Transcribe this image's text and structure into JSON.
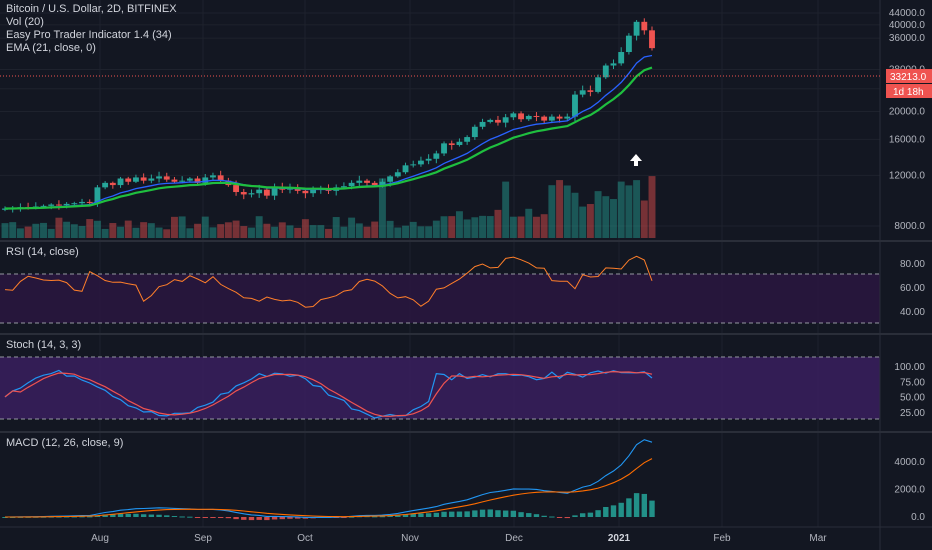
{
  "header": {
    "title": "Bitcoin / U.S. Dollar, 2D, BITFINEX",
    "vol": "Vol (20)",
    "indicator": "Easy Pro Trader Indicator 1.4 (34)",
    "ema": "EMA (21, close, 0)"
  },
  "price_tag": {
    "value": "33213.0",
    "countdown": "1d 18h"
  },
  "rsi_title": "RSI (14, close)",
  "stoch_title": "Stoch (14, 3, 3)",
  "macd_title": "MACD (12, 26, close, 9)",
  "colors": {
    "background": "#131722",
    "up": "#26a69a",
    "down": "#ef5350",
    "ema_blue": "#2962ff",
    "ema_green": "#1fbf3f",
    "rsi_line": "#ff7f2a",
    "band_fill": "#3a1e5e",
    "stoch_k": "#2196f3",
    "stoch_d": "#ef5350",
    "macd_line": "#2196f3",
    "signal_line": "#ff6d00"
  },
  "chart_data": [
    {
      "type": "candlestick",
      "title": "Bitcoin / U.S. Dollar, 2D, BITFINEX",
      "x_ticks": [
        "Aug",
        "Sep",
        "Oct",
        "Nov",
        "Dec",
        "2021",
        "Feb",
        "Mar"
      ],
      "y_ticks": [
        "44000.0",
        "40000.0",
        "36000.0",
        "28000.0",
        "24000.0",
        "20000.0",
        "16000.0",
        "12000.0",
        "8000.0"
      ],
      "price_scale": "log",
      "candles_close": [
        9200,
        9250,
        9300,
        9280,
        9350,
        9400,
        9500,
        9450,
        9550,
        9600,
        9700,
        9650,
        10900,
        11300,
        11100,
        11700,
        11400,
        11800,
        11500,
        11700,
        11900,
        11600,
        11400,
        11500,
        11700,
        11300,
        11800,
        12000,
        11500,
        11100,
        10500,
        10300,
        10400,
        10700,
        10200,
        10900,
        10700,
        10800,
        10600,
        10400,
        10700,
        10800,
        10600,
        10900,
        11000,
        11300,
        11500,
        11300,
        11100,
        11400,
        11900,
        12300,
        13000,
        13100,
        13500,
        13700,
        14300,
        15500,
        15300,
        15700,
        16300,
        17700,
        18400,
        18700,
        18300,
        19100,
        19700,
        18800,
        19300,
        19200,
        18600,
        19200,
        18900,
        19200,
        22900,
        23700,
        23400,
        26300,
        28900,
        29400,
        32200,
        36700,
        41000,
        38300,
        33213
      ],
      "ema_green": "EMA trend line (plotted)",
      "volume": "volume bars (plotted)"
    },
    {
      "type": "line",
      "title": "RSI (14, close)",
      "y_ticks": [
        "80.00",
        "60.00",
        "40.00"
      ],
      "band": [
        30,
        70
      ]
    },
    {
      "type": "line",
      "title": "Stoch (14, 3, 3)",
      "y_ticks": [
        "100.00",
        "75.00",
        "50.00",
        "25.00"
      ],
      "band": [
        20,
        80
      ]
    },
    {
      "type": "line",
      "title": "MACD (12, 26, close, 9)",
      "y_ticks": [
        "4000.0",
        "2000.0",
        "0.0"
      ]
    }
  ]
}
